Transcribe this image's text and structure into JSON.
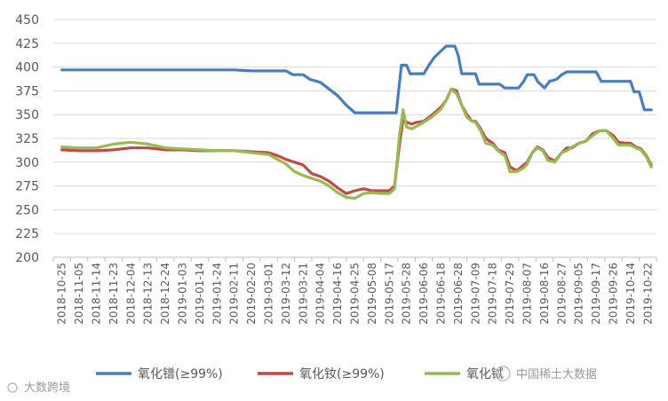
{
  "chart_data": {
    "type": "line",
    "title": "",
    "xlabel": "",
    "ylabel": "",
    "ylim": [
      200,
      450
    ],
    "yticks": [
      200,
      225,
      250,
      275,
      300,
      325,
      350,
      375,
      400,
      425,
      450
    ],
    "grid": "horizontal",
    "legend_position": "bottom",
    "categories": [
      "2018-10-25",
      "2018-11-05",
      "2018-11-14",
      "2018-11-23",
      "2018-12-04",
      "2018-12-13",
      "2018-12-24",
      "2019-01-03",
      "2019-01-14",
      "2019-01-24",
      "2019-02-11",
      "2019-02-20",
      "2019-03-01",
      "2019-03-12",
      "2019-03-21",
      "2019-04-04",
      "2019-04-16",
      "2019-04-25",
      "2019-05-08",
      "2019-05-17",
      "2019-05-28",
      "2019-06-06",
      "2019-06-18",
      "2019-06-28",
      "2019-07-09",
      "2019-07-18",
      "2019-07-29",
      "2019-08-07",
      "2019-08-16",
      "2019-08-27",
      "2019-09-05",
      "2019-09-17",
      "2019-09-26",
      "2019-10-14",
      "2019-10-22"
    ],
    "series": [
      {
        "name": "氧化镨(≥99%)",
        "color": "#4a7ebb",
        "points": [
          [
            0,
            397
          ],
          [
            2,
            397
          ],
          [
            4,
            397
          ],
          [
            6,
            397
          ],
          [
            8,
            397
          ],
          [
            10,
            397
          ],
          [
            11,
            396
          ],
          [
            12,
            396
          ],
          [
            13,
            396
          ],
          [
            13.4,
            392
          ],
          [
            14,
            392
          ],
          [
            14.4,
            387
          ],
          [
            15,
            384
          ],
          [
            15.5,
            377
          ],
          [
            16,
            370
          ],
          [
            16.5,
            360
          ],
          [
            17,
            352
          ],
          [
            18,
            352
          ],
          [
            19,
            352
          ],
          [
            19.4,
            352
          ],
          [
            19.7,
            402
          ],
          [
            20,
            402
          ],
          [
            20.2,
            393
          ],
          [
            20.5,
            393
          ],
          [
            21,
            393
          ],
          [
            21.3,
            402
          ],
          [
            21.6,
            410
          ],
          [
            22,
            417
          ],
          [
            22.3,
            422
          ],
          [
            22.8,
            422
          ],
          [
            23,
            412
          ],
          [
            23.2,
            393
          ],
          [
            23.6,
            393
          ],
          [
            24,
            393
          ],
          [
            24.2,
            382
          ],
          [
            24.6,
            382
          ],
          [
            25,
            382
          ],
          [
            25.4,
            382
          ],
          [
            25.7,
            378
          ],
          [
            26,
            378
          ],
          [
            26.5,
            378
          ],
          [
            26.8,
            385
          ],
          [
            27,
            392
          ],
          [
            27.4,
            392
          ],
          [
            27.6,
            385
          ],
          [
            28,
            378
          ],
          [
            28.3,
            385
          ],
          [
            28.7,
            387
          ],
          [
            29,
            392
          ],
          [
            29.3,
            395
          ],
          [
            30,
            395
          ],
          [
            31,
            395
          ],
          [
            31.3,
            385
          ],
          [
            32,
            385
          ],
          [
            32.6,
            385
          ],
          [
            33,
            385
          ],
          [
            33.2,
            374
          ],
          [
            33.5,
            374
          ],
          [
            33.8,
            355
          ],
          [
            34.2,
            355
          ]
        ]
      },
      {
        "name": "氧化钕(≥99%)",
        "color": "#be4b48",
        "points": [
          [
            0,
            313
          ],
          [
            1,
            312
          ],
          [
            2,
            312
          ],
          [
            3,
            313
          ],
          [
            4,
            315
          ],
          [
            5,
            315
          ],
          [
            6,
            313
          ],
          [
            7,
            313
          ],
          [
            8,
            312
          ],
          [
            9,
            312
          ],
          [
            10,
            312
          ],
          [
            11,
            311
          ],
          [
            12,
            310
          ],
          [
            12.5,
            307
          ],
          [
            13,
            303
          ],
          [
            13.5,
            300
          ],
          [
            14,
            297
          ],
          [
            14.5,
            288
          ],
          [
            15,
            285
          ],
          [
            15.5,
            280
          ],
          [
            16,
            273
          ],
          [
            16.5,
            267
          ],
          [
            17,
            270
          ],
          [
            17.5,
            272
          ],
          [
            18,
            270
          ],
          [
            18.5,
            270
          ],
          [
            19,
            270
          ],
          [
            19.3,
            275
          ],
          [
            19.6,
            320
          ],
          [
            19.8,
            345
          ],
          [
            20,
            342
          ],
          [
            20.3,
            340
          ],
          [
            20.6,
            342
          ],
          [
            21,
            343
          ],
          [
            21.5,
            350
          ],
          [
            22,
            358
          ],
          [
            22.3,
            365
          ],
          [
            22.6,
            377
          ],
          [
            22.9,
            375
          ],
          [
            23.2,
            360
          ],
          [
            23.5,
            350
          ],
          [
            23.8,
            343
          ],
          [
            24,
            343
          ],
          [
            24.3,
            335
          ],
          [
            24.6,
            325
          ],
          [
            25,
            320
          ],
          [
            25.3,
            313
          ],
          [
            25.7,
            310
          ],
          [
            26,
            295
          ],
          [
            26.4,
            291
          ],
          [
            26.8,
            297
          ],
          [
            27,
            300
          ],
          [
            27.3,
            310
          ],
          [
            27.6,
            316
          ],
          [
            27.9,
            313
          ],
          [
            28.2,
            305
          ],
          [
            28.6,
            301
          ],
          [
            29,
            310
          ],
          [
            29.3,
            315
          ],
          [
            29.6,
            315
          ],
          [
            30,
            320
          ],
          [
            30.4,
            322
          ],
          [
            30.8,
            330
          ],
          [
            31.2,
            333
          ],
          [
            31.6,
            333
          ],
          [
            32,
            328
          ],
          [
            32.3,
            321
          ],
          [
            32.7,
            320
          ],
          [
            33,
            320
          ],
          [
            33.3,
            316
          ],
          [
            33.6,
            314
          ],
          [
            33.9,
            307
          ],
          [
            34.2,
            297
          ]
        ]
      },
      {
        "name": "氧化铽",
        "color": "#98b954",
        "points": [
          [
            0,
            316
          ],
          [
            1,
            315
          ],
          [
            2,
            315
          ],
          [
            3,
            319
          ],
          [
            4,
            321
          ],
          [
            5,
            319
          ],
          [
            6,
            315
          ],
          [
            7,
            314
          ],
          [
            8,
            313
          ],
          [
            9,
            312
          ],
          [
            10,
            312
          ],
          [
            11,
            310
          ],
          [
            12,
            308
          ],
          [
            12.5,
            303
          ],
          [
            13,
            298
          ],
          [
            13.5,
            290
          ],
          [
            14,
            286
          ],
          [
            14.5,
            283
          ],
          [
            15,
            280
          ],
          [
            15.5,
            275
          ],
          [
            16,
            268
          ],
          [
            16.5,
            263
          ],
          [
            17,
            262
          ],
          [
            17.5,
            267
          ],
          [
            18,
            268
          ],
          [
            18.5,
            267
          ],
          [
            19,
            267
          ],
          [
            19.3,
            272
          ],
          [
            19.6,
            330
          ],
          [
            19.8,
            355
          ],
          [
            20,
            337
          ],
          [
            20.3,
            335
          ],
          [
            20.6,
            338
          ],
          [
            21,
            342
          ],
          [
            21.5,
            348
          ],
          [
            22,
            356
          ],
          [
            22.3,
            365
          ],
          [
            22.6,
            377
          ],
          [
            22.9,
            372
          ],
          [
            23.2,
            360
          ],
          [
            23.5,
            347
          ],
          [
            23.8,
            343
          ],
          [
            24,
            342
          ],
          [
            24.3,
            333
          ],
          [
            24.6,
            320
          ],
          [
            25,
            318
          ],
          [
            25.3,
            312
          ],
          [
            25.7,
            307
          ],
          [
            26,
            290
          ],
          [
            26.4,
            290
          ],
          [
            26.8,
            294
          ],
          [
            27,
            298
          ],
          [
            27.3,
            310
          ],
          [
            27.6,
            315
          ],
          [
            27.9,
            312
          ],
          [
            28.2,
            302
          ],
          [
            28.6,
            300
          ],
          [
            29,
            310
          ],
          [
            29.3,
            312
          ],
          [
            29.6,
            316
          ],
          [
            30,
            320
          ],
          [
            30.4,
            322
          ],
          [
            30.8,
            328
          ],
          [
            31.2,
            333
          ],
          [
            31.6,
            333
          ],
          [
            32,
            325
          ],
          [
            32.3,
            318
          ],
          [
            32.7,
            318
          ],
          [
            33,
            318
          ],
          [
            33.3,
            315
          ],
          [
            33.6,
            313
          ],
          [
            33.9,
            306
          ],
          [
            34.2,
            295
          ]
        ]
      }
    ]
  },
  "legend": {
    "items": [
      {
        "label": "氧化镨(≥99%)",
        "color": "#4a7ebb"
      },
      {
        "label": "氧化钕(≥99%)",
        "color": "#be4b48"
      },
      {
        "label": "氧化铽",
        "color": "#98b954"
      }
    ]
  },
  "watermarks": {
    "bottom_left": "大数跨境",
    "bottom_right": "中国稀土大数据"
  }
}
